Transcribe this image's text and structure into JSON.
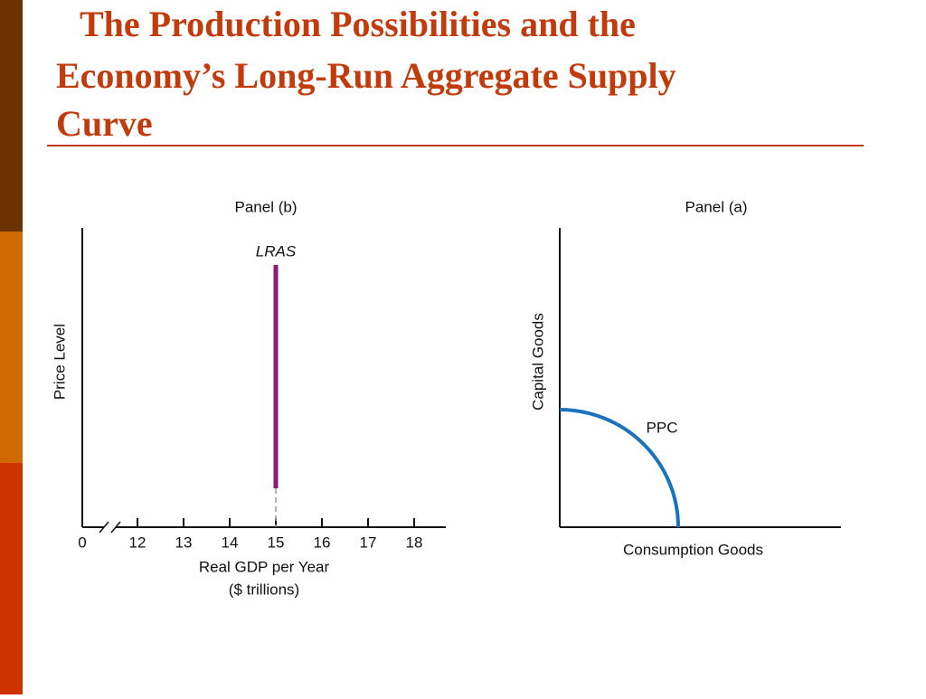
{
  "slide_title": [
    "The Production Possibilities and the",
    "Economy’s Long-Run Aggregate Supply",
    "Curve"
  ],
  "chart_data": [
    {
      "type": "line",
      "title": "Panel (b)",
      "x_label": [
        "Real GDP per Year",
        "($ trillions)"
      ],
      "y_label": "Price Level",
      "xlim": [
        10.8,
        18.7
      ],
      "xticks": [
        0,
        12,
        13,
        14,
        15,
        16,
        17,
        18
      ],
      "axis_break": true,
      "series": [
        {
          "name": "LRAS",
          "color": "#8b1a7e",
          "x": 15
        }
      ]
    },
    {
      "type": "curve",
      "title": "Panel (a)",
      "x_label": "Consumption Goods",
      "y_label": "Capital Goods",
      "curve_label": "PPC",
      "color": "#1a72be"
    }
  ]
}
